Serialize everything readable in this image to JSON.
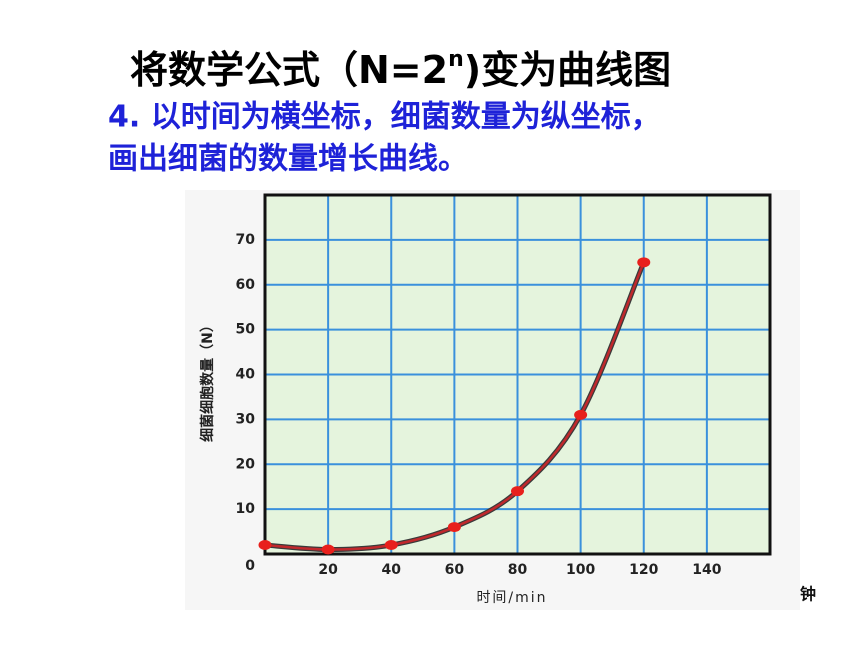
{
  "title": {
    "before": "将数学公式（N=2",
    "sup": "n",
    "after": ")变为曲线图"
  },
  "subtitle": [
    "4. 以时间为横坐标，细菌数量为纵坐标，",
    "画出细菌的数量增长曲线。"
  ],
  "chart_data": {
    "type": "line",
    "x": [
      0,
      20,
      40,
      60,
      80,
      100,
      120
    ],
    "values": [
      2,
      1,
      2,
      6,
      14,
      31,
      65
    ],
    "color": "#c0282c",
    "marker_color": "#e8201c",
    "xlabel": "时间/min",
    "ylabel": "细菌细胞数量（N）",
    "xlim": [
      0,
      160
    ],
    "ylim": [
      0,
      80
    ],
    "xticks": [
      20,
      40,
      60,
      80,
      100,
      120,
      140
    ],
    "yticks": [
      0,
      10,
      20,
      30,
      40,
      50,
      60,
      70
    ],
    "grid": true,
    "corner_note": "钟"
  }
}
